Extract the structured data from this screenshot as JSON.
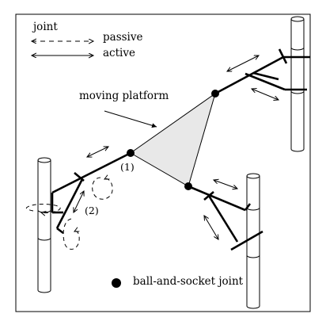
{
  "legend": {
    "title": "joint",
    "passive_label": "passive",
    "active_label": "active",
    "ball_socket_label": "ball-and-socket joint"
  },
  "labels": {
    "moving_platform": "moving platform",
    "joint_1": "(1)",
    "joint_2": "(2)"
  },
  "colors": {
    "ink": "#000000",
    "platform_fill": "#e8e8e8",
    "background": "#ffffff"
  }
}
